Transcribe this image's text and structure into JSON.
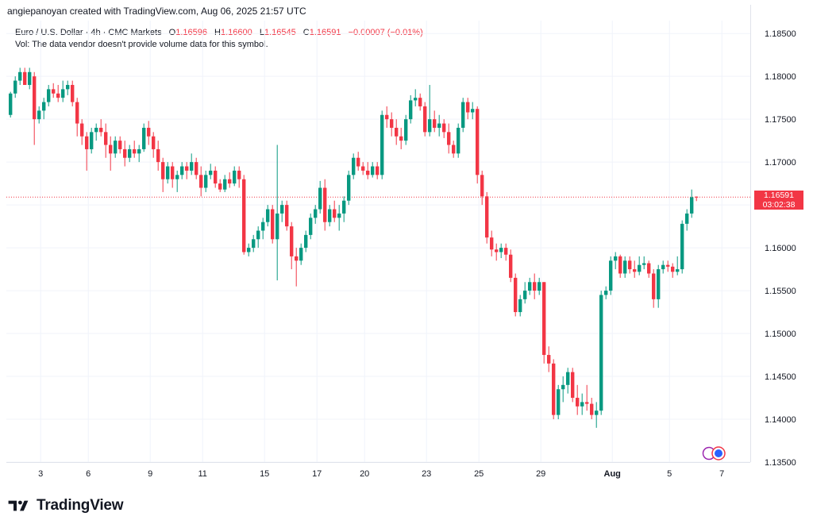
{
  "attribution": "angiepanoyan created with TradingView.com, Aug 06, 2025 21:57 UTC",
  "legend": {
    "symbol": "Euro / U.S. Dollar · 4h · CMC Markets",
    "open_label": "O",
    "open": "1.16596",
    "high_label": "H",
    "high": "1.16600",
    "low_label": "L",
    "low": "1.16545",
    "close_label": "C",
    "close": "1.16591",
    "change": "−0.00007 (−0.01%)"
  },
  "volume_note": "Vol: The data vendor doesn't provide volume data for this symbol.",
  "price_tag": {
    "price": "1.16591",
    "countdown": "03:02:38"
  },
  "logo": {
    "text": "TradingView"
  },
  "colors": {
    "up": "#089981",
    "down": "#f23645",
    "grid": "#f0f3fa",
    "axis_text": "#131722"
  },
  "chart_data": {
    "type": "candlestick",
    "title": "Euro / U.S. Dollar · 4h · CMC Markets",
    "ylim": [
      1.135,
      1.1865
    ],
    "y_ticks": [
      "1.18500",
      "1.18000",
      "1.17500",
      "1.17000",
      "1.16500",
      "1.16000",
      "1.15500",
      "1.15000",
      "1.14500",
      "1.14000",
      "1.13500"
    ],
    "x_ticks": [
      {
        "label": "3",
        "i": 3
      },
      {
        "label": "6",
        "i": 13
      },
      {
        "label": "9",
        "i": 26
      },
      {
        "label": "11",
        "i": 37
      },
      {
        "label": "15",
        "i": 50
      },
      {
        "label": "17",
        "i": 61
      },
      {
        "label": "20",
        "i": 71
      },
      {
        "label": "23",
        "i": 84
      },
      {
        "label": "25",
        "i": 95
      },
      {
        "label": "29",
        "i": 108
      },
      {
        "label": "Aug",
        "i": 123
      },
      {
        "label": "5",
        "i": 135
      },
      {
        "label": "7",
        "i": 146
      }
    ],
    "last_price": 1.16591,
    "candles": [
      [
        1.1755,
        1.1782,
        1.1752,
        1.178
      ],
      [
        1.178,
        1.18,
        1.1775,
        1.1795
      ],
      [
        1.1795,
        1.181,
        1.179,
        1.1805
      ],
      [
        1.1805,
        1.181,
        1.179,
        1.179
      ],
      [
        1.179,
        1.181,
        1.1785,
        1.1805
      ],
      [
        1.18,
        1.1805,
        1.172,
        1.175
      ],
      [
        1.175,
        1.1765,
        1.1745,
        1.176
      ],
      [
        1.176,
        1.1775,
        1.175,
        1.177
      ],
      [
        1.177,
        1.179,
        1.1765,
        1.1785
      ],
      [
        1.1785,
        1.1792,
        1.1775,
        1.178
      ],
      [
        1.178,
        1.179,
        1.177,
        1.1775
      ],
      [
        1.1775,
        1.1795,
        1.177,
        1.1785
      ],
      [
        1.1785,
        1.1795,
        1.1778,
        1.179
      ],
      [
        1.179,
        1.1795,
        1.1765,
        1.177
      ],
      [
        1.177,
        1.1775,
        1.173,
        1.1745
      ],
      [
        1.1745,
        1.175,
        1.172,
        1.173
      ],
      [
        1.173,
        1.1735,
        1.169,
        1.1715
      ],
      [
        1.1715,
        1.174,
        1.171,
        1.1735
      ],
      [
        1.1735,
        1.1745,
        1.1725,
        1.174
      ],
      [
        1.174,
        1.175,
        1.173,
        1.1735
      ],
      [
        1.1735,
        1.1745,
        1.1705,
        1.172
      ],
      [
        1.172,
        1.173,
        1.169,
        1.171
      ],
      [
        1.171,
        1.173,
        1.1705,
        1.1725
      ],
      [
        1.1725,
        1.173,
        1.171,
        1.1715
      ],
      [
        1.1715,
        1.1725,
        1.1695,
        1.1705
      ],
      [
        1.1705,
        1.172,
        1.17,
        1.1715
      ],
      [
        1.1715,
        1.1725,
        1.1705,
        1.171
      ],
      [
        1.171,
        1.172,
        1.17,
        1.1715
      ],
      [
        1.1715,
        1.1745,
        1.1712,
        1.174
      ],
      [
        1.174,
        1.1748,
        1.172,
        1.173
      ],
      [
        1.173,
        1.1735,
        1.1705,
        1.1715
      ],
      [
        1.1715,
        1.1725,
        1.169,
        1.17
      ],
      [
        1.17,
        1.1705,
        1.1665,
        1.168
      ],
      [
        1.168,
        1.17,
        1.1675,
        1.1695
      ],
      [
        1.1695,
        1.17,
        1.167,
        1.168
      ],
      [
        1.168,
        1.169,
        1.1665,
        1.1685
      ],
      [
        1.1685,
        1.17,
        1.168,
        1.1695
      ],
      [
        1.1695,
        1.17,
        1.168,
        1.169
      ],
      [
        1.169,
        1.171,
        1.1685,
        1.17
      ],
      [
        1.17,
        1.1705,
        1.168,
        1.1685
      ],
      [
        1.1685,
        1.1695,
        1.166,
        1.167
      ],
      [
        1.167,
        1.169,
        1.1665,
        1.1685
      ],
      [
        1.1685,
        1.1698,
        1.168,
        1.169
      ],
      [
        1.169,
        1.1695,
        1.167,
        1.1675
      ],
      [
        1.1675,
        1.168,
        1.1665,
        1.1668
      ],
      [
        1.1668,
        1.1685,
        1.1665,
        1.168
      ],
      [
        1.168,
        1.1688,
        1.167,
        1.1675
      ],
      [
        1.1675,
        1.1695,
        1.1672,
        1.169
      ],
      [
        1.169,
        1.1695,
        1.167,
        1.168
      ],
      [
        1.168,
        1.1685,
        1.1592,
        1.1595
      ],
      [
        1.1595,
        1.1605,
        1.159,
        1.16
      ],
      [
        1.16,
        1.1615,
        1.1595,
        1.161
      ],
      [
        1.161,
        1.1625,
        1.16,
        1.162
      ],
      [
        1.162,
        1.1635,
        1.161,
        1.163
      ],
      [
        1.163,
        1.165,
        1.1625,
        1.1645
      ],
      [
        1.1645,
        1.165,
        1.1605,
        1.161
      ],
      [
        1.161,
        1.172,
        1.1562,
        1.164
      ],
      [
        1.164,
        1.1655,
        1.163,
        1.165
      ],
      [
        1.165,
        1.1655,
        1.162,
        1.1625
      ],
      [
        1.1625,
        1.163,
        1.1575,
        1.159
      ],
      [
        1.159,
        1.16,
        1.1555,
        1.1585
      ],
      [
        1.1585,
        1.1605,
        1.158,
        1.16
      ],
      [
        1.16,
        1.162,
        1.1595,
        1.1615
      ],
      [
        1.1615,
        1.164,
        1.161,
        1.1635
      ],
      [
        1.1635,
        1.165,
        1.1628,
        1.1645
      ],
      [
        1.1645,
        1.1678,
        1.164,
        1.167
      ],
      [
        1.167,
        1.168,
        1.162,
        1.163
      ],
      [
        1.163,
        1.165,
        1.1625,
        1.1645
      ],
      [
        1.1645,
        1.1655,
        1.163,
        1.1635
      ],
      [
        1.1635,
        1.165,
        1.162,
        1.164
      ],
      [
        1.164,
        1.166,
        1.163,
        1.1655
      ],
      [
        1.1655,
        1.169,
        1.165,
        1.1685
      ],
      [
        1.1685,
        1.171,
        1.168,
        1.1705
      ],
      [
        1.1705,
        1.1712,
        1.169,
        1.1695
      ],
      [
        1.1695,
        1.17,
        1.1685,
        1.169
      ],
      [
        1.169,
        1.17,
        1.168,
        1.1685
      ],
      [
        1.1685,
        1.17,
        1.1682,
        1.1695
      ],
      [
        1.1695,
        1.17,
        1.168,
        1.1685
      ],
      [
        1.1685,
        1.176,
        1.168,
        1.1755
      ],
      [
        1.1755,
        1.1765,
        1.174,
        1.175
      ],
      [
        1.175,
        1.1758,
        1.173,
        1.174
      ],
      [
        1.174,
        1.175,
        1.172,
        1.173
      ],
      [
        1.173,
        1.174,
        1.1715,
        1.1725
      ],
      [
        1.1725,
        1.1755,
        1.172,
        1.175
      ],
      [
        1.175,
        1.1778,
        1.1745,
        1.1772
      ],
      [
        1.1772,
        1.1785,
        1.1765,
        1.1775
      ],
      [
        1.1775,
        1.178,
        1.176,
        1.1765
      ],
      [
        1.1765,
        1.177,
        1.173,
        1.1735
      ],
      [
        1.1735,
        1.179,
        1.173,
        1.175
      ],
      [
        1.175,
        1.176,
        1.1735,
        1.174
      ],
      [
        1.174,
        1.1755,
        1.173,
        1.1745
      ],
      [
        1.1745,
        1.175,
        1.1728,
        1.1735
      ],
      [
        1.1735,
        1.1745,
        1.171,
        1.172
      ],
      [
        1.172,
        1.1725,
        1.1705,
        1.171
      ],
      [
        1.171,
        1.1745,
        1.1705,
        1.174
      ],
      [
        1.174,
        1.1775,
        1.1735,
        1.177
      ],
      [
        1.177,
        1.1775,
        1.175,
        1.1758
      ],
      [
        1.1758,
        1.177,
        1.175,
        1.1762
      ],
      [
        1.1762,
        1.1765,
        1.1675,
        1.1685
      ],
      [
        1.1685,
        1.169,
        1.165,
        1.166
      ],
      [
        1.166,
        1.1665,
        1.1605,
        1.1612
      ],
      [
        1.1612,
        1.162,
        1.159,
        1.1598
      ],
      [
        1.1598,
        1.1605,
        1.1585,
        1.1595
      ],
      [
        1.1595,
        1.1605,
        1.1588,
        1.16
      ],
      [
        1.16,
        1.1605,
        1.1585,
        1.1592
      ],
      [
        1.1592,
        1.1598,
        1.156,
        1.1565
      ],
      [
        1.1565,
        1.157,
        1.152,
        1.1525
      ],
      [
        1.1525,
        1.1545,
        1.152,
        1.154
      ],
      [
        1.154,
        1.156,
        1.1535,
        1.155
      ],
      [
        1.155,
        1.1565,
        1.1545,
        1.156
      ],
      [
        1.156,
        1.157,
        1.154,
        1.155
      ],
      [
        1.155,
        1.1565,
        1.1545,
        1.156
      ],
      [
        1.156,
        1.156,
        1.1465,
        1.1475
      ],
      [
        1.1475,
        1.1485,
        1.1455,
        1.1465
      ],
      [
        1.1465,
        1.147,
        1.14,
        1.1405
      ],
      [
        1.1405,
        1.144,
        1.14,
        1.1435
      ],
      [
        1.1435,
        1.145,
        1.142,
        1.144
      ],
      [
        1.144,
        1.146,
        1.143,
        1.1455
      ],
      [
        1.1455,
        1.146,
        1.142,
        1.1425
      ],
      [
        1.1425,
        1.144,
        1.1405,
        1.1415
      ],
      [
        1.1415,
        1.143,
        1.1405,
        1.142
      ],
      [
        1.142,
        1.144,
        1.141,
        1.1418
      ],
      [
        1.1418,
        1.1425,
        1.14,
        1.1405
      ],
      [
        1.1405,
        1.142,
        1.139,
        1.141
      ],
      [
        1.141,
        1.155,
        1.1405,
        1.1545
      ],
      [
        1.1545,
        1.1555,
        1.154,
        1.155
      ],
      [
        1.155,
        1.159,
        1.1545,
        1.1585
      ],
      [
        1.1585,
        1.1595,
        1.1575,
        1.159
      ],
      [
        1.159,
        1.1592,
        1.1565,
        1.157
      ],
      [
        1.157,
        1.159,
        1.1565,
        1.1585
      ],
      [
        1.1585,
        1.159,
        1.157,
        1.1575
      ],
      [
        1.1575,
        1.1585,
        1.1565,
        1.1572
      ],
      [
        1.1572,
        1.159,
        1.1568,
        1.158
      ],
      [
        1.158,
        1.159,
        1.1575,
        1.1582
      ],
      [
        1.1582,
        1.1585,
        1.1565,
        1.157
      ],
      [
        1.157,
        1.1575,
        1.153,
        1.154
      ],
      [
        1.154,
        1.158,
        1.153,
        1.1575
      ],
      [
        1.1575,
        1.1585,
        1.157,
        1.158
      ],
      [
        1.158,
        1.1585,
        1.1572,
        1.1578
      ],
      [
        1.1578,
        1.1582,
        1.1565,
        1.1572
      ],
      [
        1.1572,
        1.159,
        1.1568,
        1.1575
      ],
      [
        1.1575,
        1.1632,
        1.157,
        1.1628
      ],
      [
        1.1628,
        1.1645,
        1.162,
        1.164
      ],
      [
        1.164,
        1.1668,
        1.1635,
        1.1659
      ],
      [
        1.16596,
        1.166,
        1.16545,
        1.16591
      ]
    ]
  }
}
